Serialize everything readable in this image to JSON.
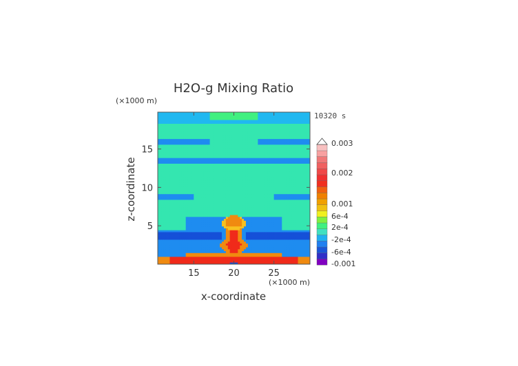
{
  "chart_data": {
    "type": "heatmap",
    "title": "H2O-g Mixing Ratio",
    "xlabel": "x-coordinate",
    "ylabel": "z-coordinate",
    "x_unit_label": "(×1000 m)",
    "y_unit_label": "(×1000 m)",
    "time_label": "10320 s",
    "xlim": [
      10.5,
      29.5
    ],
    "ylim": [
      0,
      19.8
    ],
    "x_ticks": [
      15,
      20,
      25
    ],
    "y_ticks": [
      5,
      10,
      15
    ],
    "x_tick_labels": [
      "15",
      "20",
      "25"
    ],
    "y_tick_labels": [
      "5",
      "10",
      "15"
    ],
    "colorbar": {
      "labels": [
        "0.003",
        "0.002",
        "0.001",
        "6e-4",
        "2e-4",
        "-2e-4",
        "-6e-4",
        "-0.001"
      ],
      "colors": [
        "#8000c0",
        "#3030c8",
        "#1a56d8",
        "#2080f0",
        "#20b0f0",
        "#40e0c0",
        "#40f080",
        "#80f040",
        "#f0f020",
        "#f0c010",
        "#f0a000",
        "#f08000",
        "#f06010",
        "#f03020",
        "#f03030",
        "#f04848",
        "#f06060",
        "#f07878",
        "#f8a0a0",
        "#f8c0c0"
      ],
      "extend": "max"
    }
  }
}
